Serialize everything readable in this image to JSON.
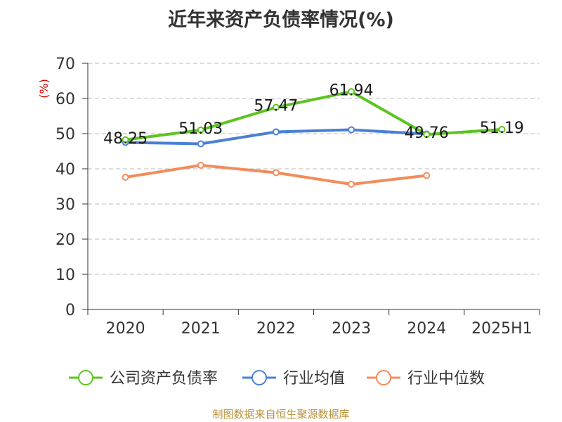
{
  "chart_data": {
    "type": "line",
    "title": "近年来资产负债率情况(%)",
    "ylabel": "(%)",
    "xlabel": "",
    "categories": [
      "2020",
      "2021",
      "2022",
      "2023",
      "2024",
      "2025H1"
    ],
    "ylim": [
      0,
      70
    ],
    "yticks": [
      0,
      10,
      20,
      30,
      40,
      50,
      60,
      70
    ],
    "grid": true,
    "legend_position": "bottom",
    "series": [
      {
        "name": "公司资产负债率",
        "color": "#5cc41f",
        "values": [
          48.25,
          51.03,
          57.47,
          61.94,
          49.76,
          51.19
        ],
        "labels": [
          "48.25",
          "51.03",
          "57.47",
          "61.94",
          "49.76",
          "51.19"
        ]
      },
      {
        "name": "行业均值",
        "color": "#4a7fd6",
        "values": [
          47.5,
          47.1,
          50.5,
          51.1,
          49.9,
          null
        ]
      },
      {
        "name": "行业中位数",
        "color": "#f28c5c",
        "values": [
          37.6,
          41.0,
          38.9,
          35.6,
          38.1,
          null
        ]
      }
    ]
  },
  "source_note": "制图数据来自恒生聚源数据库",
  "colors": {
    "axis": "#333333",
    "grid": "#bbbbbb",
    "ylabel": "#cc0000",
    "source": "#b8923a"
  }
}
